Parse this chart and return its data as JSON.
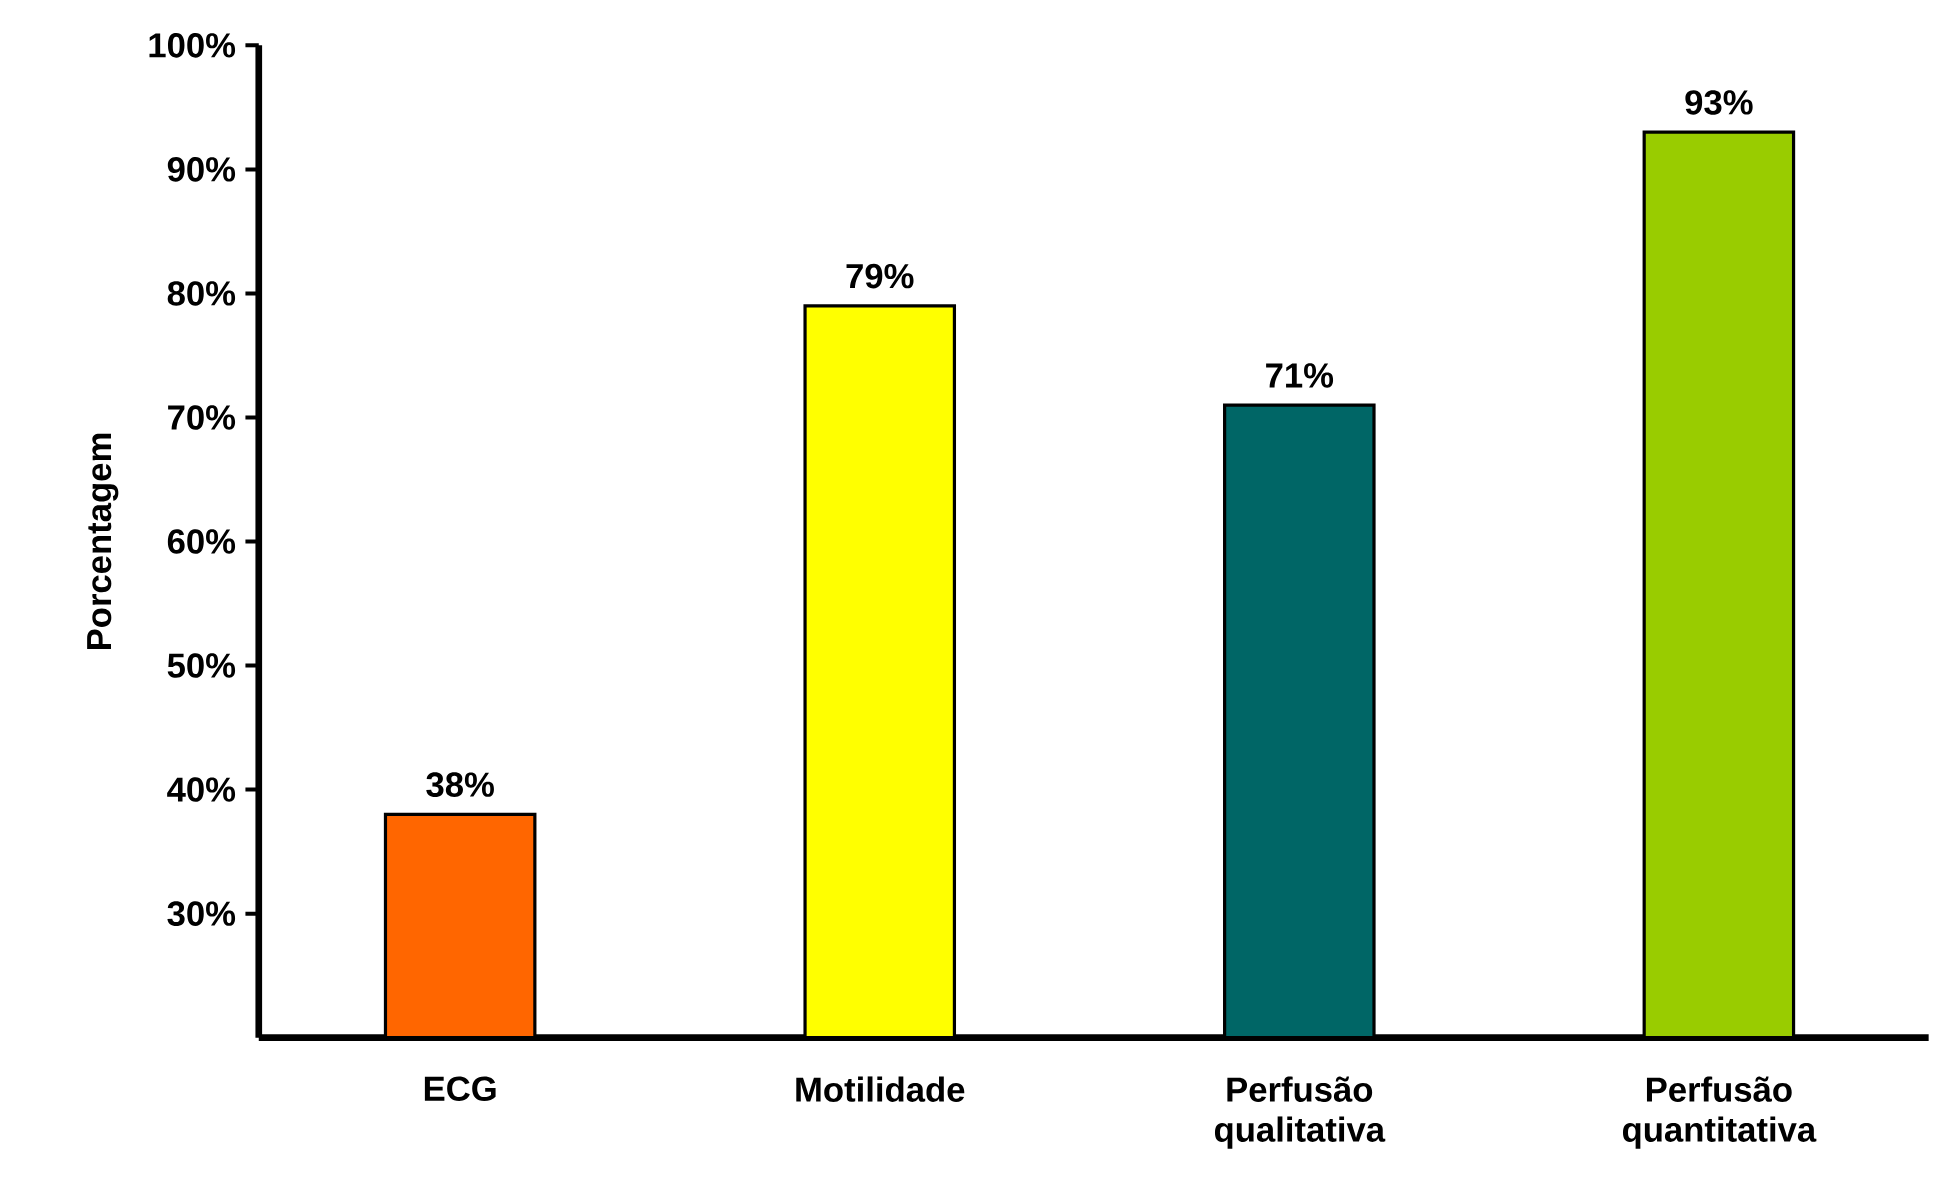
{
  "chart_data": {
    "type": "bar",
    "ylabel": "Porcentagem",
    "categories": [
      "ECG",
      "Motilidade",
      "Perfusão qualitativa",
      "Perfusão quantitativa"
    ],
    "values": [
      38,
      79,
      71,
      93
    ],
    "colors": [
      "#ff6600",
      "#ffff00",
      "#006666",
      "#99cc00"
    ],
    "value_labels": [
      "38%",
      "79%",
      "71%",
      "93%"
    ],
    "ylim": [
      20,
      100
    ],
    "yticks": [
      {
        "value": 30,
        "label": "30%"
      },
      {
        "value": 40,
        "label": "40%"
      },
      {
        "value": 50,
        "label": "50%"
      },
      {
        "value": 60,
        "label": "60%"
      },
      {
        "value": 70,
        "label": "70%"
      },
      {
        "value": 80,
        "label": "80%"
      },
      {
        "value": 90,
        "label": "90%"
      },
      {
        "value": 100,
        "label": "100%"
      }
    ]
  }
}
